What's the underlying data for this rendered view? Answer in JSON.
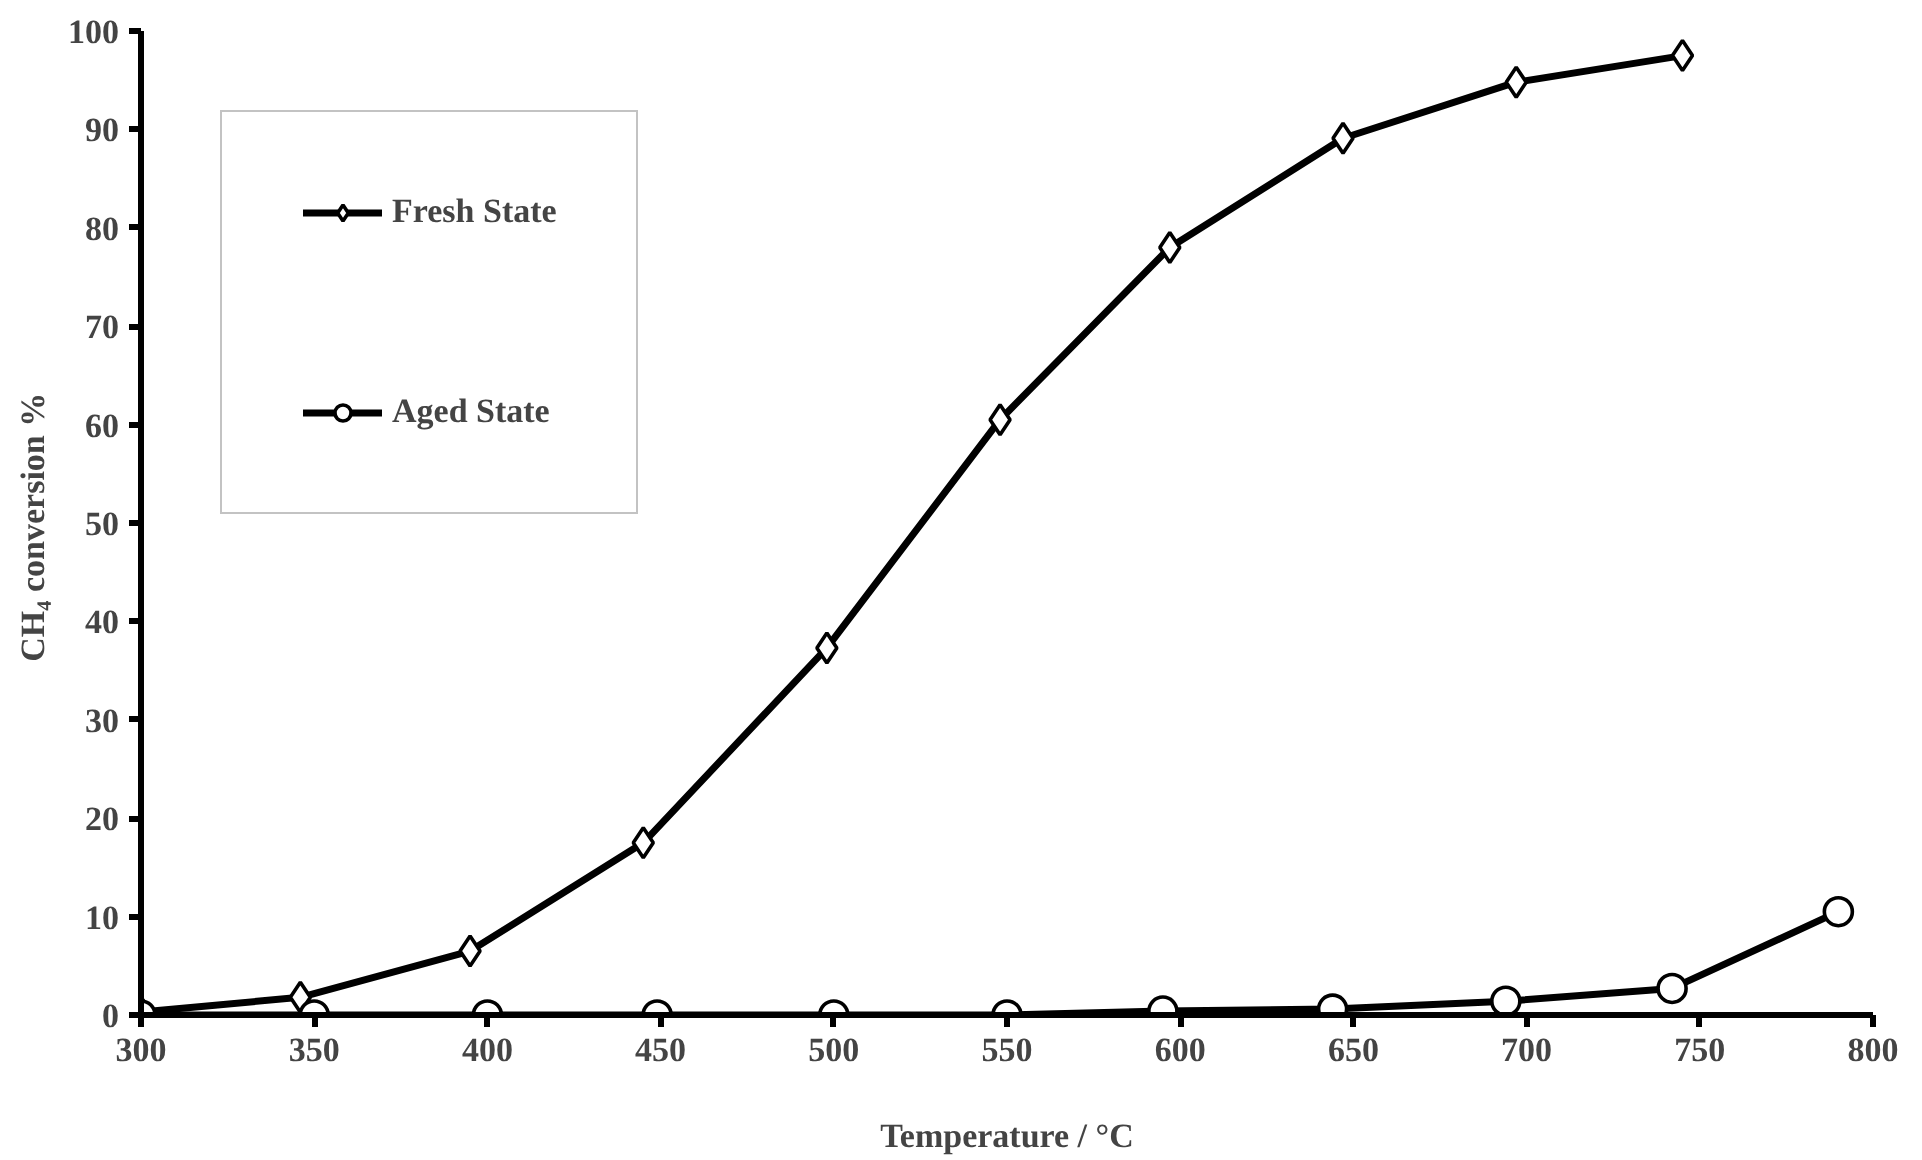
{
  "chart_data": {
    "type": "line",
    "xlabel": "Temperature / °C",
    "ylabel": "CH₄ conversion  %",
    "xlim": [
      300,
      800
    ],
    "xticks": [
      300,
      350,
      400,
      450,
      500,
      550,
      600,
      650,
      700,
      750,
      800
    ],
    "ylim": [
      0,
      100
    ],
    "yticks": [
      0,
      10,
      20,
      30,
      40,
      50,
      60,
      70,
      80,
      90,
      100
    ],
    "grid": false,
    "legend": "top left",
    "line_style": "solid",
    "series": [
      {
        "name": "Fresh State",
        "color": "#000000",
        "marker": "diamond",
        "x": [
          300,
          346,
          395,
          445,
          498,
          548,
          597,
          647,
          697,
          745
        ],
        "values": [
          0.3,
          1.8,
          6.5,
          17.5,
          37.3,
          60.5,
          78,
          89.1,
          94.8,
          97.5
        ]
      },
      {
        "name": "Aged State",
        "color": "#000000",
        "marker": "circle",
        "x": [
          300,
          350,
          400,
          449,
          500,
          550,
          595,
          644,
          694,
          742,
          790
        ],
        "values": [
          0,
          0,
          0,
          0,
          0,
          0,
          0.4,
          0.6,
          1.4,
          2.7,
          10.5
        ]
      }
    ]
  }
}
